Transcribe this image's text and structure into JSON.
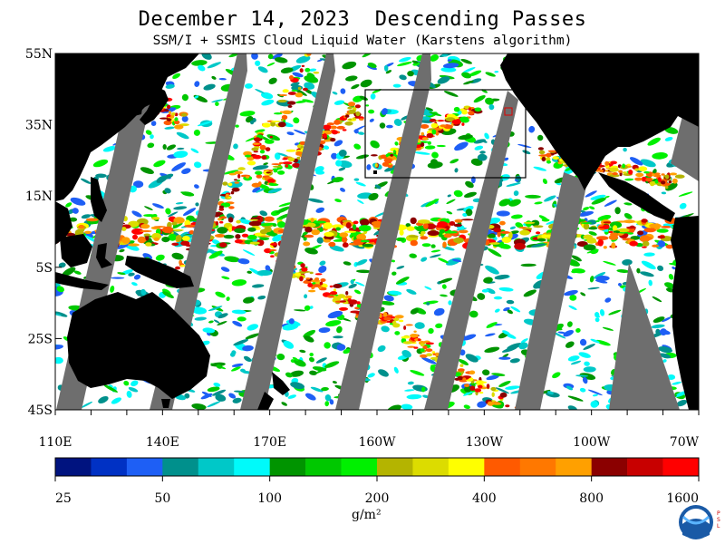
{
  "title": "December 14, 2023  Descending Passes",
  "subtitle": "SSM/I + SSMIS Cloud Liquid Water (Karstens algorithm)",
  "map": {
    "lat_labels": [
      "55N",
      "35N",
      "15N",
      "5S",
      "25S",
      "45S"
    ],
    "lon_labels": [
      "110E",
      "140E",
      "170E",
      "160W",
      "130W",
      "100W",
      "70W"
    ],
    "colors": {
      "land": "#000000",
      "no_data_swath": "#6e6e6e",
      "clear": "#ffffff"
    }
  },
  "colorbar": {
    "colors": [
      "#00137f",
      "#0031c4",
      "#1e5ff5",
      "#00908c",
      "#00c8c8",
      "#00fafa",
      "#009400",
      "#00c800",
      "#00f000",
      "#b4b400",
      "#dcdc00",
      "#ffff00",
      "#ff5a00",
      "#ff7800",
      "#ffa000",
      "#8b0000",
      "#c80000",
      "#ff0000"
    ],
    "tick_labels": [
      "25",
      "50",
      "100",
      "200",
      "400",
      "800",
      "1600"
    ],
    "units": "g/m²"
  },
  "logo": {
    "name": "NOAA",
    "side_text": "PSL"
  }
}
